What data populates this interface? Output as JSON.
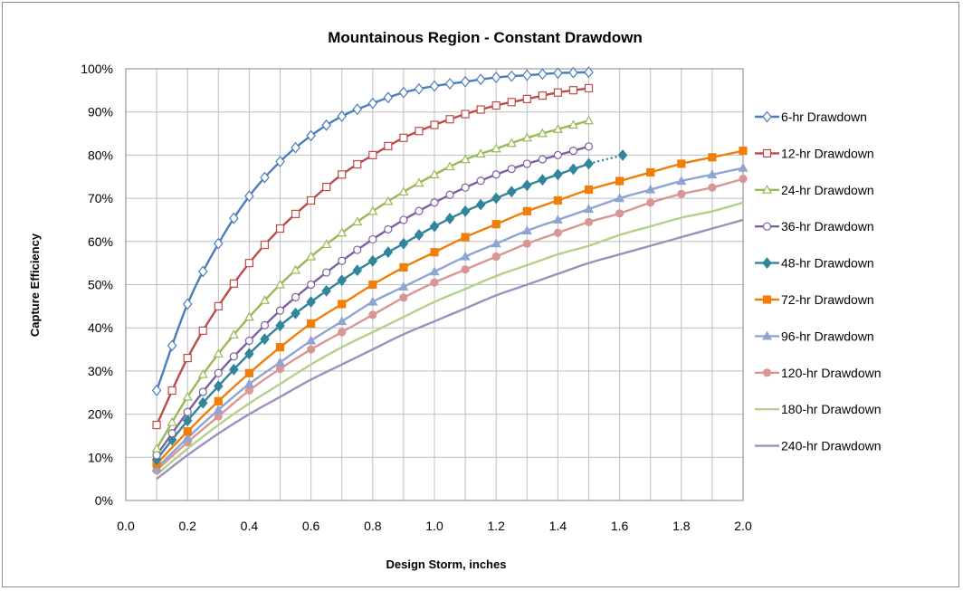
{
  "chart_data": {
    "type": "line",
    "title": "Mountainous Region - Constant Drawdown",
    "xlabel": "Design Storm, inches",
    "ylabel": "Capture Efficiency",
    "xlim": [
      0.0,
      2.0
    ],
    "ylim": [
      0,
      100
    ],
    "x_ticks": [
      "0.0",
      "0.2",
      "0.4",
      "0.6",
      "0.8",
      "1.0",
      "1.2",
      "1.4",
      "1.6",
      "1.8",
      "2.0"
    ],
    "y_ticks": [
      "0%",
      "10%",
      "20%",
      "30%",
      "40%",
      "50%",
      "60%",
      "70%",
      "80%",
      "90%",
      "100%"
    ],
    "grid": true,
    "legend_position": "right",
    "series": [
      {
        "name": "6-hr Drawdown",
        "color": "#4a7ebb",
        "marker": "diamond-open",
        "step": 0.05,
        "x": [
          0.1,
          1.5
        ],
        "points": [
          [
            0.1,
            25.5
          ],
          [
            0.2,
            45.5
          ],
          [
            0.3,
            59.5
          ],
          [
            0.4,
            70.5
          ],
          [
            0.5,
            78.5
          ],
          [
            0.6,
            84.5
          ],
          [
            0.7,
            89
          ],
          [
            0.8,
            92
          ],
          [
            0.9,
            94.5
          ],
          [
            1.0,
            96
          ],
          [
            1.1,
            97
          ],
          [
            1.2,
            98
          ],
          [
            1.3,
            98.5
          ],
          [
            1.4,
            99
          ],
          [
            1.5,
            99.2
          ]
        ]
      },
      {
        "name": "12-hr Drawdown",
        "color": "#be4b48",
        "marker": "square-open",
        "step": 0.05,
        "x": [
          0.1,
          1.5
        ],
        "points": [
          [
            0.1,
            17.5
          ],
          [
            0.2,
            33
          ],
          [
            0.3,
            45
          ],
          [
            0.4,
            55
          ],
          [
            0.5,
            63
          ],
          [
            0.6,
            69.5
          ],
          [
            0.7,
            75.5
          ],
          [
            0.8,
            80
          ],
          [
            0.9,
            84
          ],
          [
            1.0,
            87
          ],
          [
            1.1,
            89.5
          ],
          [
            1.2,
            91.5
          ],
          [
            1.3,
            93
          ],
          [
            1.4,
            94.5
          ],
          [
            1.5,
            95.5
          ]
        ]
      },
      {
        "name": "24-hr Drawdown",
        "color": "#98b954",
        "marker": "triangle-open",
        "step": 0.05,
        "x": [
          0.1,
          1.5
        ],
        "points": [
          [
            0.1,
            12
          ],
          [
            0.2,
            24
          ],
          [
            0.3,
            34
          ],
          [
            0.4,
            42.5
          ],
          [
            0.5,
            50
          ],
          [
            0.6,
            56.5
          ],
          [
            0.7,
            62
          ],
          [
            0.8,
            67
          ],
          [
            0.9,
            71.5
          ],
          [
            1.0,
            75.5
          ],
          [
            1.1,
            79
          ],
          [
            1.2,
            81.5
          ],
          [
            1.3,
            84
          ],
          [
            1.4,
            86
          ],
          [
            1.5,
            88
          ]
        ]
      },
      {
        "name": "36-hr Drawdown",
        "color": "#7d60a0",
        "marker": "circle-open",
        "step": 0.05,
        "x": [
          0.1,
          1.5
        ],
        "points": [
          [
            0.1,
            10.5
          ],
          [
            0.2,
            20.5
          ],
          [
            0.3,
            29.5
          ],
          [
            0.4,
            37
          ],
          [
            0.5,
            44
          ],
          [
            0.6,
            50
          ],
          [
            0.7,
            55.5
          ],
          [
            0.8,
            60.5
          ],
          [
            0.9,
            65
          ],
          [
            1.0,
            69
          ],
          [
            1.1,
            72.5
          ],
          [
            1.2,
            75.5
          ],
          [
            1.3,
            78
          ],
          [
            1.4,
            80
          ],
          [
            1.5,
            82
          ]
        ]
      },
      {
        "name": "48-hr Drawdown",
        "color": "#31859c",
        "marker": "diamond-filled",
        "step": 0.05,
        "x": [
          0.1,
          1.5
        ],
        "points": [
          [
            0.1,
            9.5
          ],
          [
            0.2,
            18.5
          ],
          [
            0.3,
            26.5
          ],
          [
            0.4,
            34
          ],
          [
            0.5,
            40.5
          ],
          [
            0.6,
            46
          ],
          [
            0.7,
            51
          ],
          [
            0.8,
            55.5
          ],
          [
            0.9,
            59.5
          ],
          [
            1.0,
            63.5
          ],
          [
            1.1,
            67
          ],
          [
            1.2,
            70
          ],
          [
            1.3,
            73
          ],
          [
            1.4,
            75.5
          ],
          [
            1.5,
            78
          ]
        ],
        "extension_x": 1.61,
        "extension_y": 80
      },
      {
        "name": "72-hr Drawdown",
        "color": "#f07f09",
        "marker": "square-filled",
        "step": 0.1,
        "x": [
          0.1,
          2.0
        ],
        "points": [
          [
            0.1,
            8.5
          ],
          [
            0.2,
            16
          ],
          [
            0.3,
            23
          ],
          [
            0.4,
            29.5
          ],
          [
            0.5,
            35.5
          ],
          [
            0.6,
            41
          ],
          [
            0.7,
            45.5
          ],
          [
            0.8,
            50
          ],
          [
            0.9,
            54
          ],
          [
            1.0,
            57.5
          ],
          [
            1.1,
            61
          ],
          [
            1.2,
            64
          ],
          [
            1.3,
            67
          ],
          [
            1.4,
            69.5
          ],
          [
            1.5,
            72
          ],
          [
            1.6,
            74
          ],
          [
            1.7,
            76
          ],
          [
            1.8,
            78
          ],
          [
            1.9,
            79.5
          ],
          [
            2.0,
            81
          ]
        ]
      },
      {
        "name": "96-hr Drawdown",
        "color": "#8ea4d2",
        "marker": "triangle-filled",
        "step": 0.1,
        "x": [
          0.1,
          2.0
        ],
        "points": [
          [
            0.1,
            7.5
          ],
          [
            0.2,
            14.5
          ],
          [
            0.3,
            21
          ],
          [
            0.4,
            27
          ],
          [
            0.5,
            32
          ],
          [
            0.6,
            37
          ],
          [
            0.7,
            41.5
          ],
          [
            0.8,
            46
          ],
          [
            0.9,
            49.5
          ],
          [
            1.0,
            53
          ],
          [
            1.1,
            56.5
          ],
          [
            1.2,
            59.5
          ],
          [
            1.3,
            62.5
          ],
          [
            1.4,
            65
          ],
          [
            1.5,
            67.5
          ],
          [
            1.6,
            70
          ],
          [
            1.7,
            72
          ],
          [
            1.8,
            74
          ],
          [
            1.9,
            75.5
          ],
          [
            2.0,
            77
          ]
        ]
      },
      {
        "name": "120-hr Drawdown",
        "color": "#d99694",
        "marker": "circle-filled",
        "step": 0.1,
        "x": [
          0.1,
          2.0
        ],
        "points": [
          [
            0.1,
            7
          ],
          [
            0.2,
            13.5
          ],
          [
            0.3,
            19.5
          ],
          [
            0.4,
            25.5
          ],
          [
            0.5,
            30.5
          ],
          [
            0.6,
            35
          ],
          [
            0.7,
            39
          ],
          [
            0.8,
            43
          ],
          [
            0.9,
            47
          ],
          [
            1.0,
            50.5
          ],
          [
            1.1,
            53.5
          ],
          [
            1.2,
            56.5
          ],
          [
            1.3,
            59.5
          ],
          [
            1.4,
            62
          ],
          [
            1.5,
            64.5
          ],
          [
            1.6,
            66.5
          ],
          [
            1.7,
            69
          ],
          [
            1.8,
            71
          ],
          [
            1.9,
            72.5
          ],
          [
            2.0,
            74.5
          ]
        ]
      },
      {
        "name": "180-hr Drawdown",
        "color": "#b3d18a",
        "marker": "none",
        "step": 0.1,
        "x": [
          0.1,
          2.0
        ],
        "points": [
          [
            0.1,
            6
          ],
          [
            0.2,
            12
          ],
          [
            0.3,
            17.5
          ],
          [
            0.4,
            22.5
          ],
          [
            0.5,
            27
          ],
          [
            0.6,
            31.5
          ],
          [
            0.7,
            35.5
          ],
          [
            0.8,
            39
          ],
          [
            0.9,
            42.5
          ],
          [
            1.0,
            46
          ],
          [
            1.1,
            49
          ],
          [
            1.2,
            52
          ],
          [
            1.3,
            54.5
          ],
          [
            1.4,
            57
          ],
          [
            1.5,
            59
          ],
          [
            1.6,
            61.5
          ],
          [
            1.7,
            63.5
          ],
          [
            1.8,
            65.5
          ],
          [
            1.9,
            67
          ],
          [
            2.0,
            69
          ]
        ]
      },
      {
        "name": "240-hr Drawdown",
        "color": "#9f8fc0",
        "marker": "none",
        "step": 0.1,
        "x": [
          0.1,
          2.0
        ],
        "points": [
          [
            0.1,
            5
          ],
          [
            0.2,
            10.5
          ],
          [
            0.3,
            15.5
          ],
          [
            0.4,
            20
          ],
          [
            0.5,
            24
          ],
          [
            0.6,
            28
          ],
          [
            0.7,
            31.5
          ],
          [
            0.8,
            35
          ],
          [
            0.9,
            38.5
          ],
          [
            1.0,
            41.5
          ],
          [
            1.1,
            44.5
          ],
          [
            1.2,
            47.5
          ],
          [
            1.3,
            50
          ],
          [
            1.4,
            52.5
          ],
          [
            1.5,
            55
          ],
          [
            1.6,
            57
          ],
          [
            1.7,
            59
          ],
          [
            1.8,
            61
          ],
          [
            1.9,
            63
          ],
          [
            2.0,
            65
          ]
        ]
      }
    ]
  }
}
